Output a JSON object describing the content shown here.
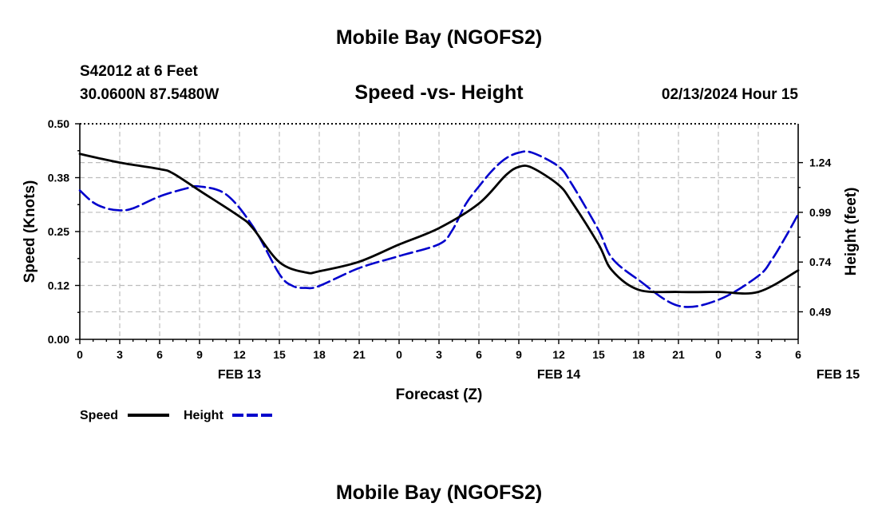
{
  "title": "Mobile Bay (NGOFS2)",
  "repeat_title": "Mobile Bay (NGOFS2)",
  "station": "S42012 at 6 Feet",
  "coordinates": "30.0600N  87.5480W",
  "subtitle": "Speed -vs- Height",
  "timestamp": "02/13/2024 Hour 15",
  "chart_data": {
    "type": "line",
    "title": "Speed -vs- Height",
    "xlabel": "Forecast (Z)",
    "ylabel_left": "Speed (Knots)",
    "ylabel_right": "Height (feet)",
    "x_ticks": [
      "0",
      "3",
      "6",
      "9",
      "12",
      "15",
      "18",
      "21",
      "0",
      "3",
      "6",
      "9",
      "12",
      "15",
      "18",
      "21",
      "0",
      "3",
      "6"
    ],
    "date_labels": [
      {
        "label": "FEB 13",
        "hour": 12
      },
      {
        "label": "FEB 14",
        "hour": 36
      },
      {
        "label": "FEB 15",
        "hour": 57
      }
    ],
    "xlim": [
      0,
      54
    ],
    "ylim_left": [
      0,
      0.5
    ],
    "left_ticks": [
      "0.00",
      "0.12",
      "0.25",
      "0.38",
      "0.50"
    ],
    "left_tick_values": [
      0,
      0.125,
      0.25,
      0.375,
      0.5
    ],
    "ylim_right": [
      0.3515,
      1.4352
    ],
    "right_ticks": [
      "0.49",
      "0.74",
      "0.99",
      "1.24"
    ],
    "right_tick_values": [
      0.49,
      0.74,
      0.99,
      1.24
    ],
    "grid": true,
    "legend_position": "bottom-left",
    "series": [
      {
        "name": "Speed",
        "axis": "left",
        "style": "solid",
        "color": "#000000",
        "x": [
          0,
          3,
          6,
          7,
          9,
          12,
          13,
          15,
          17,
          18,
          21,
          24,
          27,
          30,
          32,
          33,
          34,
          36,
          37,
          39,
          40,
          42,
          45,
          48,
          51,
          54
        ],
        "y": [
          0.43,
          0.41,
          0.395,
          0.385,
          0.345,
          0.285,
          0.258,
          0.179,
          0.155,
          0.158,
          0.18,
          0.22,
          0.258,
          0.315,
          0.38,
          0.4,
          0.398,
          0.358,
          0.318,
          0.22,
          0.16,
          0.115,
          0.11,
          0.11,
          0.11,
          0.16
        ]
      },
      {
        "name": "Height",
        "axis": "right",
        "style": "dashed",
        "color": "#0000cc",
        "x": [
          0,
          1,
          2,
          3,
          4,
          6,
          8,
          9,
          11,
          13,
          15,
          16,
          17,
          18,
          21,
          24,
          27,
          28,
          29,
          30,
          31,
          32,
          33,
          34,
          36,
          37,
          39,
          40,
          42,
          45,
          48,
          51,
          52,
          53,
          54
        ],
        "y": [
          1.1,
          1.04,
          1.01,
          1.0,
          1.01,
          1.07,
          1.11,
          1.12,
          1.08,
          0.92,
          0.68,
          0.62,
          0.61,
          0.62,
          0.71,
          0.77,
          0.83,
          0.9,
          1.03,
          1.12,
          1.2,
          1.26,
          1.29,
          1.29,
          1.22,
          1.13,
          0.9,
          0.76,
          0.65,
          0.52,
          0.55,
          0.67,
          0.75,
          0.86,
          0.98
        ]
      }
    ]
  },
  "legend": {
    "speed_label": "Speed",
    "height_label": "Height"
  }
}
